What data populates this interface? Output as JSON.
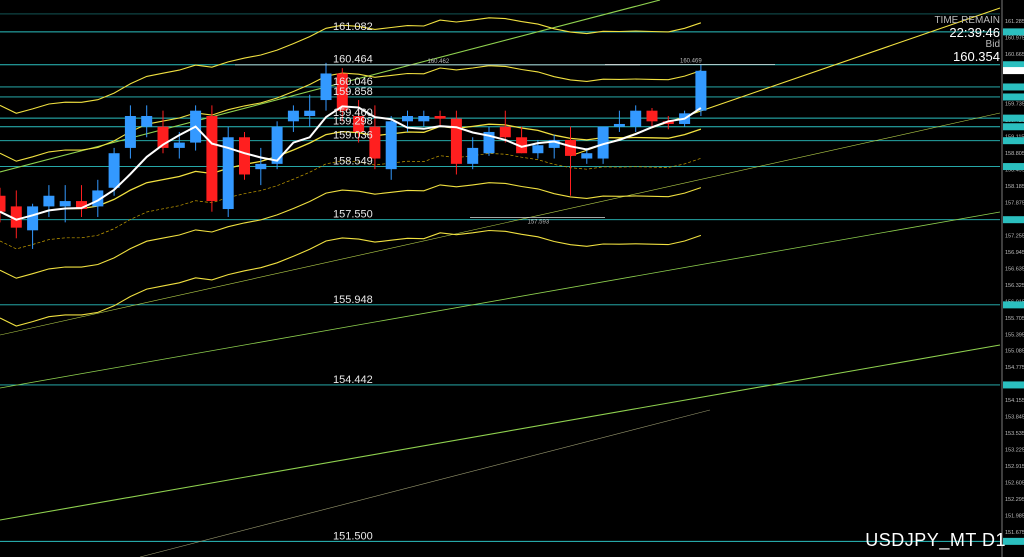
{
  "info": {
    "time_label": "TIME REMAIN",
    "time_value": "22:39:46",
    "bid_label": "Bid",
    "bid_value": "160.354"
  },
  "symbol": "USDJPY_MT D1",
  "colors": {
    "up": "#3399ff",
    "down": "#ff1f1f",
    "hline": "#2bbfbf",
    "band": "#f0e040",
    "trend": "#8fd14f",
    "ma": "#ffffff"
  },
  "chart_data": {
    "type": "candlestick",
    "title": "",
    "ylim": [
      151.3,
      161.55
    ],
    "axis_ticks": [
      "161.285",
      "160.975",
      "160.665",
      "160.355",
      "160.045",
      "159.735",
      "159.425",
      "159.115",
      "158.805",
      "158.495",
      "158.185",
      "157.875",
      "157.565",
      "157.255",
      "156.945",
      "156.635",
      "156.325",
      "156.015",
      "155.705",
      "155.395",
      "155.085",
      "154.775",
      "154.465",
      "154.155",
      "153.845",
      "153.535",
      "153.225",
      "152.915",
      "152.605",
      "152.295",
      "151.985",
      "151.675"
    ],
    "horizontal_levels": [
      161.082,
      160.464,
      160.046,
      159.858,
      159.46,
      159.298,
      159.036,
      158.549,
      157.55,
      155.948,
      154.442,
      151.5
    ],
    "marked_points": [
      {
        "label": "160.462",
        "value": 160.462
      },
      {
        "label": "160.469",
        "value": 160.469
      },
      {
        "label": "157.593",
        "value": 157.593
      }
    ],
    "candles": [
      {
        "o": 158.0,
        "h": 158.15,
        "l": 157.5,
        "c": 157.7
      },
      {
        "o": 157.8,
        "h": 158.1,
        "l": 157.2,
        "c": 157.4
      },
      {
        "o": 157.35,
        "h": 157.85,
        "l": 157.0,
        "c": 157.8
      },
      {
        "o": 157.8,
        "h": 158.2,
        "l": 157.6,
        "c": 158.0
      },
      {
        "o": 157.8,
        "h": 158.2,
        "l": 157.5,
        "c": 157.9
      },
      {
        "o": 157.9,
        "h": 158.2,
        "l": 157.6,
        "c": 157.75
      },
      {
        "o": 157.8,
        "h": 158.3,
        "l": 157.6,
        "c": 158.1
      },
      {
        "o": 158.15,
        "h": 158.9,
        "l": 158.0,
        "c": 158.8
      },
      {
        "o": 158.9,
        "h": 159.7,
        "l": 158.7,
        "c": 159.5
      },
      {
        "o": 159.3,
        "h": 159.7,
        "l": 159.1,
        "c": 159.5
      },
      {
        "o": 159.3,
        "h": 159.6,
        "l": 158.8,
        "c": 158.9
      },
      {
        "o": 158.9,
        "h": 159.2,
        "l": 158.7,
        "c": 159.0
      },
      {
        "o": 159.0,
        "h": 159.7,
        "l": 158.85,
        "c": 159.6
      },
      {
        "o": 159.5,
        "h": 159.7,
        "l": 157.7,
        "c": 157.9
      },
      {
        "o": 157.75,
        "h": 159.3,
        "l": 157.6,
        "c": 159.1
      },
      {
        "o": 159.1,
        "h": 159.2,
        "l": 158.3,
        "c": 158.4
      },
      {
        "o": 158.5,
        "h": 158.9,
        "l": 158.2,
        "c": 158.6
      },
      {
        "o": 158.6,
        "h": 159.4,
        "l": 158.5,
        "c": 159.3
      },
      {
        "o": 159.4,
        "h": 159.7,
        "l": 159.2,
        "c": 159.6
      },
      {
        "o": 159.5,
        "h": 159.9,
        "l": 159.3,
        "c": 159.6
      },
      {
        "o": 159.8,
        "h": 160.5,
        "l": 159.6,
        "c": 160.3
      },
      {
        "o": 160.3,
        "h": 160.4,
        "l": 159.4,
        "c": 159.6
      },
      {
        "o": 159.5,
        "h": 159.8,
        "l": 159.0,
        "c": 159.2
      },
      {
        "o": 159.3,
        "h": 159.7,
        "l": 158.5,
        "c": 158.7
      },
      {
        "o": 158.5,
        "h": 159.5,
        "l": 158.3,
        "c": 159.4
      },
      {
        "o": 159.4,
        "h": 159.6,
        "l": 159.2,
        "c": 159.5
      },
      {
        "o": 159.4,
        "h": 159.6,
        "l": 159.3,
        "c": 159.5
      },
      {
        "o": 159.5,
        "h": 159.6,
        "l": 159.3,
        "c": 159.45
      },
      {
        "o": 159.45,
        "h": 159.6,
        "l": 158.4,
        "c": 158.6
      },
      {
        "o": 158.6,
        "h": 159.1,
        "l": 158.5,
        "c": 158.9
      },
      {
        "o": 158.8,
        "h": 159.3,
        "l": 158.75,
        "c": 159.2
      },
      {
        "o": 159.3,
        "h": 159.6,
        "l": 159.0,
        "c": 159.1
      },
      {
        "o": 159.1,
        "h": 159.3,
        "l": 158.8,
        "c": 158.8
      },
      {
        "o": 158.8,
        "h": 159.05,
        "l": 158.7,
        "c": 158.95
      },
      {
        "o": 158.9,
        "h": 159.15,
        "l": 158.7,
        "c": 159.05
      },
      {
        "o": 159.05,
        "h": 159.3,
        "l": 158.0,
        "c": 158.75
      },
      {
        "o": 158.7,
        "h": 158.9,
        "l": 158.6,
        "c": 158.8
      },
      {
        "o": 158.7,
        "h": 159.3,
        "l": 158.6,
        "c": 159.3
      },
      {
        "o": 159.3,
        "h": 159.6,
        "l": 159.2,
        "c": 159.35
      },
      {
        "o": 159.3,
        "h": 159.7,
        "l": 159.2,
        "c": 159.6
      },
      {
        "o": 159.6,
        "h": 159.65,
        "l": 159.3,
        "c": 159.4
      },
      {
        "o": 159.4,
        "h": 159.5,
        "l": 159.25,
        "c": 159.35
      },
      {
        "o": 159.35,
        "h": 159.6,
        "l": 159.3,
        "c": 159.55
      },
      {
        "o": 159.6,
        "h": 160.47,
        "l": 159.5,
        "c": 160.35
      }
    ]
  }
}
